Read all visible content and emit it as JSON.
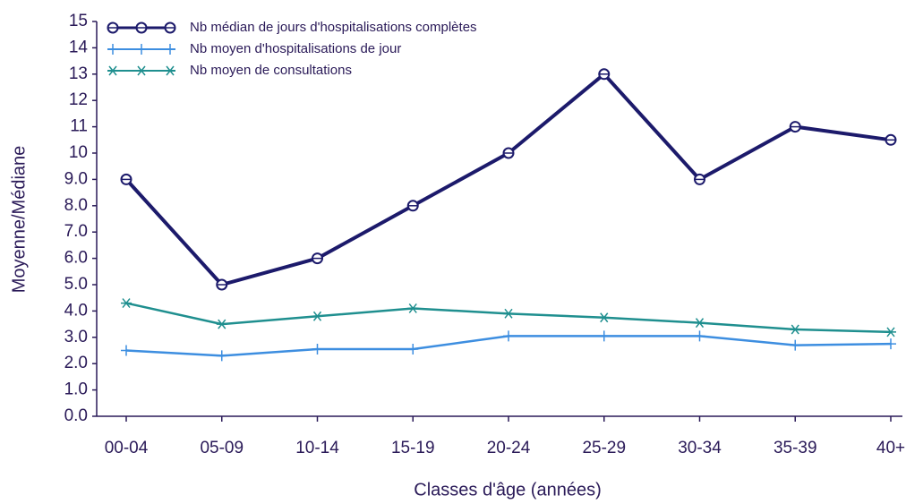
{
  "chart_data": {
    "type": "line",
    "xlabel": "Classes d'âge (années)",
    "ylabel": "Moyenne/Médiane",
    "categories": [
      "00-04",
      "05-09",
      "10-14",
      "15-19",
      "20-24",
      "25-29",
      "30-34",
      "35-39",
      "40+"
    ],
    "series": [
      {
        "name": "Nb médian de jours d'hospitalisations complètes",
        "color": "#1c1a6b",
        "marker": "circle",
        "values": [
          9,
          5,
          6,
          8,
          10,
          13,
          9,
          11,
          10.5
        ]
      },
      {
        "name": "Nb moyen d'hospitalisations de jour",
        "color": "#3d8ee0",
        "marker": "plus",
        "values": [
          2.5,
          2.3,
          2.55,
          2.55,
          3.05,
          3.05,
          3.05,
          2.7,
          2.75
        ]
      },
      {
        "name": "Nb moyen de consultations",
        "color": "#1f8f8f",
        "marker": "star",
        "values": [
          4.3,
          3.5,
          3.8,
          4.1,
          3.9,
          3.75,
          3.55,
          3.3,
          3.2
        ]
      }
    ],
    "ylim": [
      0,
      15
    ],
    "yticks": [
      {
        "value": 0,
        "label": "0.0"
      },
      {
        "value": 1,
        "label": "1.0"
      },
      {
        "value": 2,
        "label": "2.0"
      },
      {
        "value": 3,
        "label": "3.0"
      },
      {
        "value": 4,
        "label": "4.0"
      },
      {
        "value": 5,
        "label": "5.0"
      },
      {
        "value": 6,
        "label": "6.0"
      },
      {
        "value": 7,
        "label": "7.0"
      },
      {
        "value": 8,
        "label": "8.0"
      },
      {
        "value": 9,
        "label": "9.0"
      },
      10,
      11,
      12,
      13,
      14,
      15
    ],
    "legend": "upper left"
  }
}
